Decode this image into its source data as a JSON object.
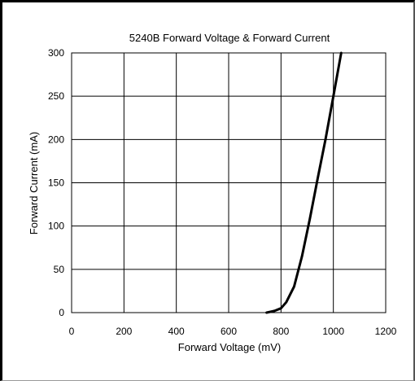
{
  "chart_data": {
    "type": "line",
    "title": "5240B Forward Voltage & Forward Current",
    "xlabel": "Forward Voltage (mV)",
    "ylabel": "Forward Current (mA)",
    "xlim": [
      0,
      1200
    ],
    "ylim": [
      0,
      300
    ],
    "xticks": [
      0,
      200,
      400,
      600,
      800,
      1000,
      1200
    ],
    "yticks": [
      0,
      50,
      100,
      150,
      200,
      250,
      300
    ],
    "grid": true,
    "series": [
      {
        "x": [
          745,
          775,
          800,
          820,
          850,
          880,
          910,
          940,
          970,
          1000,
          1030
        ],
        "y": [
          0,
          2,
          5,
          12,
          30,
          65,
          108,
          155,
          200,
          250,
          300
        ]
      }
    ],
    "colors": {
      "line": "#000000",
      "grid": "#000000"
    }
  }
}
